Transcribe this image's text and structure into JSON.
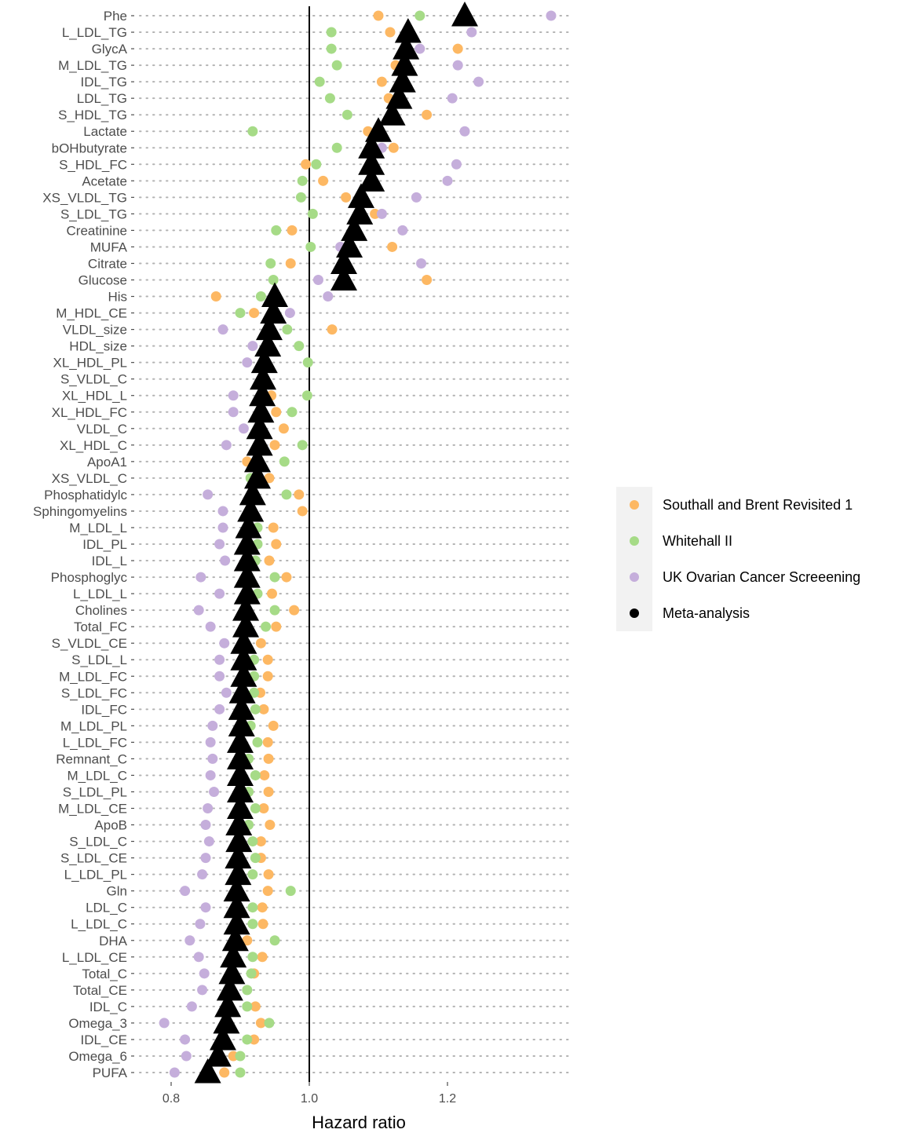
{
  "chart_data": {
    "type": "scatter",
    "xlabel": "Hazard ratio",
    "ylabel": "",
    "xlim": [
      0.76,
      1.38
    ],
    "xticks": [
      0.8,
      1.0,
      1.2
    ],
    "xtick_labels": [
      "0.8",
      "1.0",
      "1.2"
    ],
    "reference_line": 1.0,
    "legend_position": "right",
    "grid": "dotted horizontal lines",
    "categories": [
      "Phe",
      "L_LDL_TG",
      "GlycA",
      "M_LDL_TG",
      "IDL_TG",
      "LDL_TG",
      "S_HDL_TG",
      "Lactate",
      "bOHbutyrate",
      "S_HDL_FC",
      "Acetate",
      "XS_VLDL_TG",
      "S_LDL_TG",
      "Creatinine",
      "MUFA",
      "Citrate",
      "Glucose",
      "His",
      "M_HDL_CE",
      "VLDL_size",
      "HDL_size",
      "XL_HDL_PL",
      "S_VLDL_C",
      "XL_HDL_L",
      "XL_HDL_FC",
      "VLDL_C",
      "XL_HDL_C",
      "ApoA1",
      "XS_VLDL_C",
      "Phosphatidylc",
      "Sphingomyelins",
      "M_LDL_L",
      "IDL_PL",
      "IDL_L",
      "Phosphoglyc",
      "L_LDL_L",
      "Cholines",
      "Total_FC",
      "S_VLDL_CE",
      "S_LDL_L",
      "M_LDL_FC",
      "S_LDL_FC",
      "IDL_FC",
      "M_LDL_PL",
      "L_LDL_FC",
      "Remnant_C",
      "M_LDL_C",
      "S_LDL_PL",
      "M_LDL_CE",
      "ApoB",
      "S_LDL_C",
      "S_LDL_CE",
      "L_LDL_PL",
      "Gln",
      "LDL_C",
      "L_LDL_C",
      "DHA",
      "L_LDL_CE",
      "Total_C",
      "Total_CE",
      "IDL_C",
      "Omega_3",
      "IDL_CE",
      "Omega_6",
      "PUFA"
    ],
    "series": [
      {
        "name": "Southall and Brent Revisited 1",
        "color": "#fdb863",
        "marker": "circle",
        "values": [
          1.1,
          1.117,
          1.215,
          1.125,
          1.105,
          1.115,
          1.17,
          1.085,
          1.122,
          0.995,
          1.02,
          1.053,
          1.095,
          0.975,
          1.12,
          0.973,
          1.17,
          0.865,
          0.92,
          1.033,
          null,
          null,
          null,
          0.945,
          0.952,
          0.963,
          0.95,
          0.91,
          0.942,
          0.985,
          0.99,
          0.948,
          0.952,
          0.942,
          0.967,
          0.946,
          0.978,
          0.952,
          0.93,
          0.94,
          0.94,
          0.929,
          0.934,
          0.948,
          0.94,
          0.941,
          0.935,
          0.941,
          0.934,
          0.943,
          0.93,
          0.93,
          0.941,
          0.94,
          0.932,
          0.933,
          0.91,
          0.932,
          0.92,
          null,
          0.922,
          0.93,
          0.92,
          0.89,
          0.877
        ]
      },
      {
        "name": "Whitehall II",
        "color": "#a6db87",
        "marker": "circle",
        "values": [
          1.16,
          1.032,
          1.032,
          1.04,
          1.015,
          1.03,
          1.055,
          0.918,
          1.04,
          1.01,
          0.99,
          0.988,
          1.005,
          0.952,
          1.002,
          0.944,
          0.948,
          0.93,
          0.9,
          0.968,
          0.985,
          0.998,
          null,
          0.997,
          0.975,
          null,
          0.99,
          0.964,
          0.915,
          0.967,
          null,
          0.925,
          0.925,
          0.922,
          0.95,
          0.925,
          0.95,
          0.937,
          null,
          0.92,
          0.92,
          0.92,
          0.922,
          0.915,
          0.925,
          0.912,
          0.922,
          0.912,
          0.922,
          0.912,
          0.918,
          0.922,
          0.918,
          0.973,
          0.918,
          0.918,
          0.95,
          0.918,
          0.916,
          0.91,
          0.91,
          0.942,
          0.91,
          0.9,
          0.9
        ]
      },
      {
        "name": "UK Ovarian Cancer Screeening",
        "color": "#c5aedb",
        "marker": "circle",
        "values": [
          1.35,
          1.235,
          1.16,
          1.215,
          1.245,
          1.207,
          null,
          1.225,
          1.105,
          1.213,
          1.2,
          1.155,
          1.105,
          1.135,
          1.045,
          1.162,
          1.013,
          1.027,
          0.972,
          0.875,
          0.918,
          0.91,
          null,
          0.89,
          0.89,
          0.905,
          0.88,
          null,
          null,
          0.853,
          0.875,
          0.875,
          0.87,
          0.878,
          0.843,
          0.87,
          0.84,
          0.857,
          0.877,
          0.87,
          0.87,
          0.88,
          0.87,
          0.86,
          0.857,
          0.86,
          0.857,
          0.862,
          0.853,
          0.85,
          0.855,
          0.85,
          0.845,
          0.82,
          0.85,
          0.842,
          0.827,
          0.84,
          0.848,
          0.845,
          0.83,
          0.79,
          0.82,
          0.822,
          0.805
        ]
      },
      {
        "name": "Meta-analysis",
        "color": "#000000",
        "marker": "triangle",
        "values": [
          1.225,
          1.143,
          1.14,
          1.138,
          1.135,
          1.13,
          1.12,
          1.1,
          1.09,
          1.09,
          1.09,
          1.075,
          1.073,
          1.065,
          1.058,
          1.05,
          1.05,
          0.95,
          0.948,
          0.942,
          0.94,
          0.935,
          0.933,
          0.932,
          0.93,
          0.928,
          0.928,
          0.925,
          0.925,
          0.918,
          0.915,
          0.912,
          0.91,
          0.91,
          0.91,
          0.91,
          0.908,
          0.908,
          0.905,
          0.905,
          0.905,
          0.903,
          0.902,
          0.902,
          0.9,
          0.9,
          0.9,
          0.9,
          0.9,
          0.898,
          0.898,
          0.897,
          0.897,
          0.895,
          0.895,
          0.895,
          0.893,
          0.89,
          0.888,
          0.885,
          0.882,
          0.88,
          0.875,
          0.868,
          0.853
        ]
      }
    ]
  },
  "legend": {
    "items": [
      {
        "label": "Southall and Brent Revisited 1",
        "color": "#fdb863"
      },
      {
        "label": "Whitehall II",
        "color": "#a6db87"
      },
      {
        "label": "UK Ovarian Cancer Screeening",
        "color": "#c5aedb"
      },
      {
        "label": "Meta-analysis",
        "color": "#000000"
      }
    ]
  }
}
